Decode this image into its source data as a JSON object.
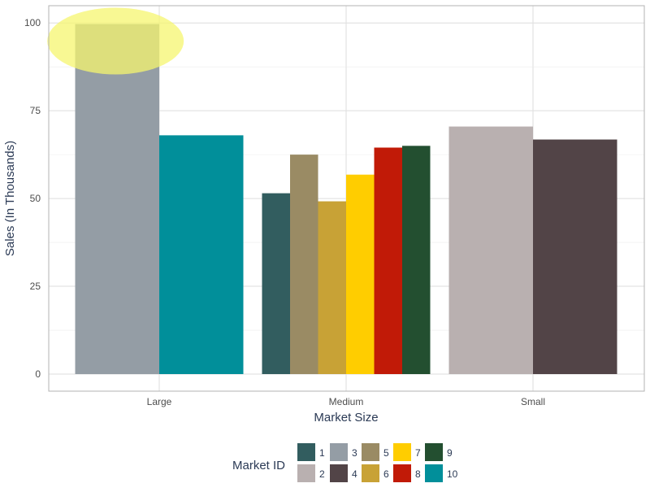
{
  "chart_data": {
    "type": "bar",
    "title": "",
    "xlabel": "Market Size",
    "ylabel": "Sales (In Thousands)",
    "ylim": [
      0,
      105
    ],
    "yticks": [
      0,
      25,
      50,
      75,
      100
    ],
    "grid": true,
    "legend_position": "bottom",
    "legend_title": "Market ID",
    "categories": [
      "Large",
      "Medium",
      "Small"
    ],
    "series": [
      {
        "name": "1",
        "color": "#325d5f",
        "values": [
          null,
          51.5,
          null
        ]
      },
      {
        "name": "2",
        "color": "#b9b0b0",
        "values": [
          null,
          null,
          70.5
        ]
      },
      {
        "name": "3",
        "color": "#949da5",
        "values": [
          99.7,
          null,
          null
        ]
      },
      {
        "name": "4",
        "color": "#524447",
        "values": [
          null,
          null,
          66.8
        ]
      },
      {
        "name": "5",
        "color": "#9a8b64",
        "values": [
          null,
          62.5,
          null
        ]
      },
      {
        "name": "6",
        "color": "#c8a236",
        "values": [
          null,
          49.2,
          null
        ]
      },
      {
        "name": "7",
        "color": "#ffcd00",
        "values": [
          null,
          56.8,
          null
        ]
      },
      {
        "name": "8",
        "color": "#c11a07",
        "values": [
          null,
          64.5,
          null
        ]
      },
      {
        "name": "9",
        "color": "#234f30",
        "values": [
          null,
          65.0,
          null
        ]
      },
      {
        "name": "10",
        "color": "#018f9a",
        "values": [
          68.0,
          null,
          null
        ]
      }
    ],
    "annotations": [
      {
        "type": "highlight-ellipse",
        "target_category": "Large",
        "target_series": "3",
        "color": "#f6f66f"
      }
    ]
  }
}
